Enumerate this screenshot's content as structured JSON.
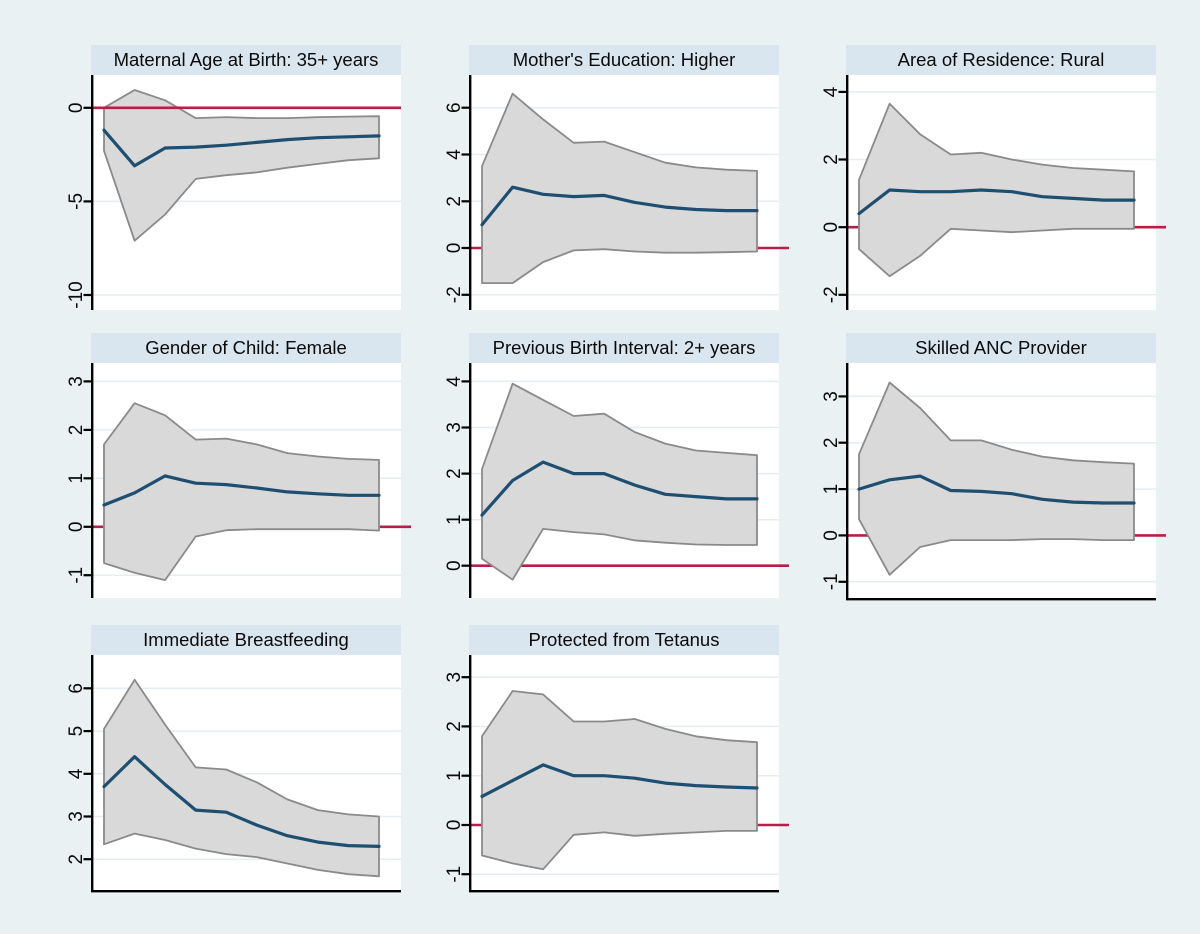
{
  "figure": {
    "background": "#eaf1f3",
    "title_strip_color": "#d9e6f0",
    "plot_background": "#ffffff",
    "gridline_color": "#e4edf3",
    "zero_line_color": "#b42049",
    "estimate_line_color": "#1e4e70",
    "band_fill_color": "#d9d9d9",
    "band_stroke_color": "#8a8a8a",
    "axis_color": "#000000"
  },
  "chart_data": [
    {
      "type": "line",
      "title": "Maternal Age at Birth: 35+ years",
      "x": [
        1,
        2,
        3,
        4,
        5,
        6,
        7,
        8,
        9,
        10
      ],
      "series": [
        {
          "name": "estimate",
          "values": [
            -1.2,
            -3.1,
            -2.15,
            -2.1,
            -2.0,
            -1.85,
            -1.7,
            -1.6,
            -1.55,
            -1.5
          ]
        },
        {
          "name": "ci_upper",
          "values": [
            0.0,
            0.95,
            0.4,
            -0.55,
            -0.5,
            -0.55,
            -0.55,
            -0.5,
            -0.47,
            -0.45
          ]
        },
        {
          "name": "ci_lower",
          "values": [
            -2.3,
            -7.1,
            -5.7,
            -3.8,
            -3.6,
            -3.45,
            -3.2,
            -3.0,
            -2.8,
            -2.7
          ]
        }
      ],
      "yticks": [
        0,
        -5,
        -10
      ],
      "ylim": [
        -10.8,
        1.75
      ],
      "zero_line": true,
      "zero_line_front": true,
      "zero_line_overhang": false,
      "grid": true,
      "row": 0,
      "col": 0,
      "bottom_axis": false
    },
    {
      "type": "line",
      "title": "Mother's Education: Higher",
      "x": [
        1,
        2,
        3,
        4,
        5,
        6,
        7,
        8,
        9,
        10
      ],
      "series": [
        {
          "name": "estimate",
          "values": [
            1.0,
            2.6,
            2.3,
            2.2,
            2.25,
            1.95,
            1.75,
            1.65,
            1.6,
            1.6
          ]
        },
        {
          "name": "ci_upper",
          "values": [
            3.5,
            6.6,
            5.5,
            4.5,
            4.55,
            4.1,
            3.65,
            3.45,
            3.35,
            3.3
          ]
        },
        {
          "name": "ci_lower",
          "values": [
            -1.5,
            -1.5,
            -0.6,
            -0.1,
            -0.05,
            -0.15,
            -0.2,
            -0.2,
            -0.18,
            -0.15
          ]
        }
      ],
      "yticks": [
        6,
        4,
        2,
        0,
        -2
      ],
      "ylim": [
        -2.65,
        7.4
      ],
      "zero_line": true,
      "zero_line_front": false,
      "zero_line_overhang": true,
      "grid": true,
      "row": 0,
      "col": 1,
      "bottom_axis": false
    },
    {
      "type": "line",
      "title": "Area of Residence: Rural",
      "x": [
        1,
        2,
        3,
        4,
        5,
        6,
        7,
        8,
        9,
        10
      ],
      "series": [
        {
          "name": "estimate",
          "values": [
            0.4,
            1.1,
            1.05,
            1.05,
            1.1,
            1.05,
            0.9,
            0.85,
            0.8,
            0.8
          ]
        },
        {
          "name": "ci_upper",
          "values": [
            1.4,
            3.65,
            2.75,
            2.15,
            2.2,
            2.0,
            1.85,
            1.75,
            1.7,
            1.65
          ]
        },
        {
          "name": "ci_lower",
          "values": [
            -0.65,
            -1.45,
            -0.85,
            -0.05,
            -0.1,
            -0.15,
            -0.1,
            -0.05,
            -0.05,
            -0.05
          ]
        }
      ],
      "yticks": [
        4,
        2,
        0,
        -2
      ],
      "ylim": [
        -2.45,
        4.5
      ],
      "zero_line": true,
      "zero_line_front": false,
      "zero_line_overhang": true,
      "grid": true,
      "row": 0,
      "col": 2,
      "bottom_axis": false
    },
    {
      "type": "line",
      "title": "Gender of Child: Female",
      "x": [
        1,
        2,
        3,
        4,
        5,
        6,
        7,
        8,
        9,
        10
      ],
      "series": [
        {
          "name": "estimate",
          "values": [
            0.45,
            0.7,
            1.05,
            0.9,
            0.87,
            0.8,
            0.72,
            0.68,
            0.65,
            0.65
          ]
        },
        {
          "name": "ci_upper",
          "values": [
            1.7,
            2.55,
            2.3,
            1.8,
            1.82,
            1.7,
            1.52,
            1.45,
            1.4,
            1.38
          ]
        },
        {
          "name": "ci_lower",
          "values": [
            -0.75,
            -0.95,
            -1.1,
            -0.2,
            -0.07,
            -0.05,
            -0.05,
            -0.05,
            -0.05,
            -0.08
          ]
        }
      ],
      "yticks": [
        3,
        2,
        1,
        0,
        -1
      ],
      "ylim": [
        -1.47,
        3.38
      ],
      "zero_line": true,
      "zero_line_front": false,
      "zero_line_overhang": true,
      "grid": true,
      "row": 1,
      "col": 0,
      "bottom_axis": false
    },
    {
      "type": "line",
      "title": "Previous Birth Interval: 2+ years",
      "x": [
        1,
        2,
        3,
        4,
        5,
        6,
        7,
        8,
        9,
        10
      ],
      "series": [
        {
          "name": "estimate",
          "values": [
            1.1,
            1.85,
            2.25,
            2.0,
            2.0,
            1.75,
            1.55,
            1.5,
            1.45,
            1.45
          ]
        },
        {
          "name": "ci_upper",
          "values": [
            2.1,
            3.95,
            3.6,
            3.25,
            3.3,
            2.9,
            2.65,
            2.5,
            2.45,
            2.4
          ]
        },
        {
          "name": "ci_lower",
          "values": [
            0.15,
            -0.3,
            0.8,
            0.73,
            0.68,
            0.55,
            0.5,
            0.46,
            0.45,
            0.45
          ]
        }
      ],
      "yticks": [
        4,
        3,
        2,
        1,
        0
      ],
      "ylim": [
        -0.7,
        4.4
      ],
      "zero_line": true,
      "zero_line_front": false,
      "zero_line_overhang": true,
      "grid": true,
      "row": 1,
      "col": 1,
      "bottom_axis": false
    },
    {
      "type": "line",
      "title": "Skilled ANC Provider",
      "x": [
        1,
        2,
        3,
        4,
        5,
        6,
        7,
        8,
        9,
        10
      ],
      "series": [
        {
          "name": "estimate",
          "values": [
            1.0,
            1.2,
            1.28,
            0.97,
            0.95,
            0.9,
            0.78,
            0.72,
            0.7,
            0.7
          ]
        },
        {
          "name": "ci_upper",
          "values": [
            1.75,
            3.3,
            2.75,
            2.05,
            2.05,
            1.85,
            1.7,
            1.62,
            1.58,
            1.55
          ]
        },
        {
          "name": "ci_lower",
          "values": [
            0.35,
            -0.85,
            -0.25,
            -0.1,
            -0.1,
            -0.1,
            -0.08,
            -0.08,
            -0.1,
            -0.1
          ]
        }
      ],
      "yticks": [
        3,
        2,
        1,
        0,
        -1
      ],
      "ylim": [
        -1.35,
        3.72
      ],
      "zero_line": true,
      "zero_line_front": false,
      "zero_line_overhang": true,
      "grid": true,
      "row": 1,
      "col": 2,
      "bottom_axis": true
    },
    {
      "type": "line",
      "title": "Immediate Breastfeeding",
      "x": [
        1,
        2,
        3,
        4,
        5,
        6,
        7,
        8,
        9,
        10
      ],
      "series": [
        {
          "name": "estimate",
          "values": [
            3.7,
            4.4,
            3.75,
            3.15,
            3.1,
            2.8,
            2.55,
            2.4,
            2.32,
            2.3
          ]
        },
        {
          "name": "ci_upper",
          "values": [
            5.05,
            6.2,
            5.15,
            4.15,
            4.1,
            3.8,
            3.4,
            3.15,
            3.05,
            3.0
          ]
        },
        {
          "name": "ci_lower",
          "values": [
            2.35,
            2.6,
            2.45,
            2.25,
            2.12,
            2.05,
            1.9,
            1.75,
            1.65,
            1.6
          ]
        }
      ],
      "yticks": [
        6,
        5,
        4,
        3,
        2
      ],
      "ylim": [
        1.28,
        6.78
      ],
      "zero_line": false,
      "zero_line_front": false,
      "zero_line_overhang": false,
      "grid": true,
      "row": 2,
      "col": 0,
      "bottom_axis": true
    },
    {
      "type": "line",
      "title": "Protected from Tetanus",
      "x": [
        1,
        2,
        3,
        4,
        5,
        6,
        7,
        8,
        9,
        10
      ],
      "series": [
        {
          "name": "estimate",
          "values": [
            0.58,
            0.9,
            1.22,
            1.0,
            1.0,
            0.95,
            0.85,
            0.8,
            0.77,
            0.75
          ]
        },
        {
          "name": "ci_upper",
          "values": [
            1.8,
            2.72,
            2.65,
            2.1,
            2.1,
            2.15,
            1.95,
            1.8,
            1.72,
            1.68
          ]
        },
        {
          "name": "ci_lower",
          "values": [
            -0.62,
            -0.78,
            -0.9,
            -0.2,
            -0.15,
            -0.22,
            -0.18,
            -0.15,
            -0.12,
            -0.12
          ]
        }
      ],
      "yticks": [
        3,
        2,
        1,
        0,
        -1
      ],
      "ylim": [
        -1.32,
        3.45
      ],
      "zero_line": true,
      "zero_line_front": false,
      "zero_line_overhang": true,
      "grid": true,
      "row": 2,
      "col": 1,
      "bottom_axis": true
    }
  ]
}
